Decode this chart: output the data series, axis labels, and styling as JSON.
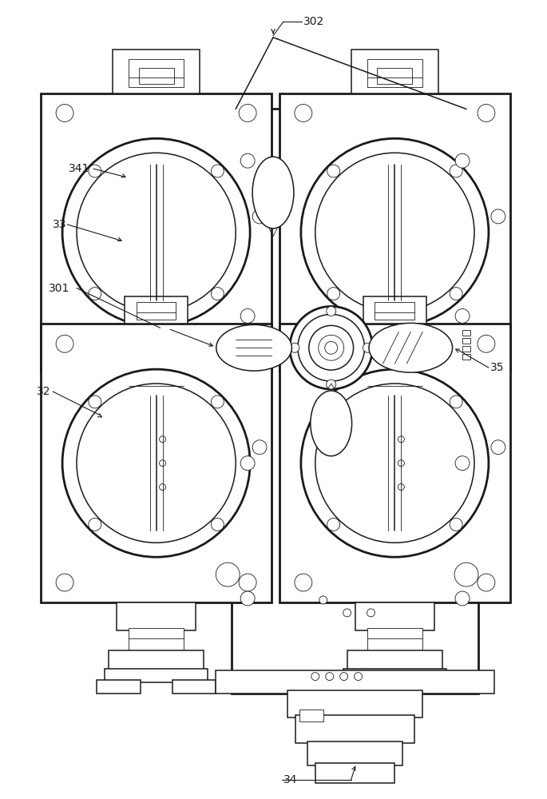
{
  "bg_color": "#ffffff",
  "line_color": "#1a1a1a",
  "lw_thick": 2.0,
  "lw_main": 1.1,
  "lw_thin": 0.6,
  "label_fontsize": 10,
  "figsize": [
    6.85,
    10.0
  ],
  "dpi": 100
}
